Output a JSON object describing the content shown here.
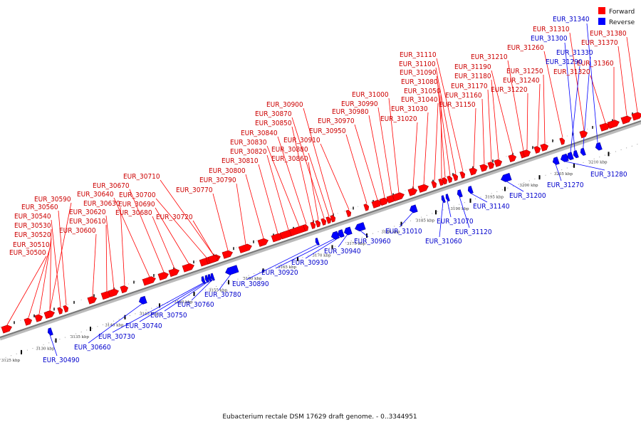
{
  "caption": "Eubacterium rectale DSM 17629 draft genome. - 0..3344951",
  "legend": [
    {
      "label": "Forward",
      "color": "#ff0000"
    },
    {
      "label": "Reverse",
      "color": "#0000ff"
    }
  ],
  "colors": {
    "forward": "#ff0000",
    "reverse": "#0000ff",
    "backbone": "#888888"
  },
  "ticks": [
    "3125 kbp",
    "3130 kbp",
    "3135 kbp",
    "3140 kbp",
    "3145 kbp",
    "3150 kbp",
    "3155 kbp",
    "3160 kbp",
    "3165 kbp",
    "3170 kbp",
    "3175 kbp",
    "3180 kbp",
    "3185 kbp",
    "3190 kbp",
    "3195 kbp",
    "3200 kbp",
    "3205 kbp",
    "3210 kbp"
  ],
  "forward_genes": [
    "EUR_30500",
    "EUR_30510",
    "EUR_30520",
    "EUR_30530",
    "EUR_30540",
    "EUR_30560",
    "EUR_30590",
    "EUR_30600",
    "EUR_30610",
    "EUR_30620",
    "EUR_30630",
    "EUR_30640",
    "EUR_30670",
    "EUR_30680",
    "EUR_30690",
    "EUR_30700",
    "EUR_30710",
    "EUR_30720",
    "EUR_30770",
    "EUR_30790",
    "EUR_30800",
    "EUR_30810",
    "EUR_30820",
    "EUR_30830",
    "EUR_30840",
    "EUR_30850",
    "EUR_30860",
    "EUR_30870",
    "EUR_30880",
    "EUR_30900",
    "EUR_30910",
    "EUR_30950",
    "EUR_30970",
    "EUR_30980",
    "EUR_30990",
    "EUR_31000",
    "EUR_31020",
    "EUR_31030",
    "EUR_31040",
    "EUR_31050",
    "EUR_31080",
    "EUR_31090",
    "EUR_31100",
    "EUR_31110",
    "EUR_31150",
    "EUR_31160",
    "EUR_31170",
    "EUR_31180",
    "EUR_31190",
    "EUR_31210",
    "EUR_31220",
    "EUR_31240",
    "EUR_31250",
    "EUR_31260",
    "EUR_31310",
    "EUR_31320",
    "EUR_31360",
    "EUR_31370",
    "EUR_31380"
  ],
  "reverse_genes": [
    "EUR_30490",
    "EUR_30660",
    "EUR_30730",
    "EUR_30740",
    "EUR_30750",
    "EUR_30760",
    "EUR_30780",
    "EUR_30890",
    "EUR_30920",
    "EUR_30930",
    "EUR_30940",
    "EUR_30960",
    "EUR_31010",
    "EUR_31060",
    "EUR_31070",
    "EUR_31120",
    "EUR_31140",
    "EUR_31200",
    "EUR_31270",
    "EUR_31280",
    "EUR_31290",
    "EUR_31300",
    "EUR_31330",
    "EUR_31340"
  ]
}
